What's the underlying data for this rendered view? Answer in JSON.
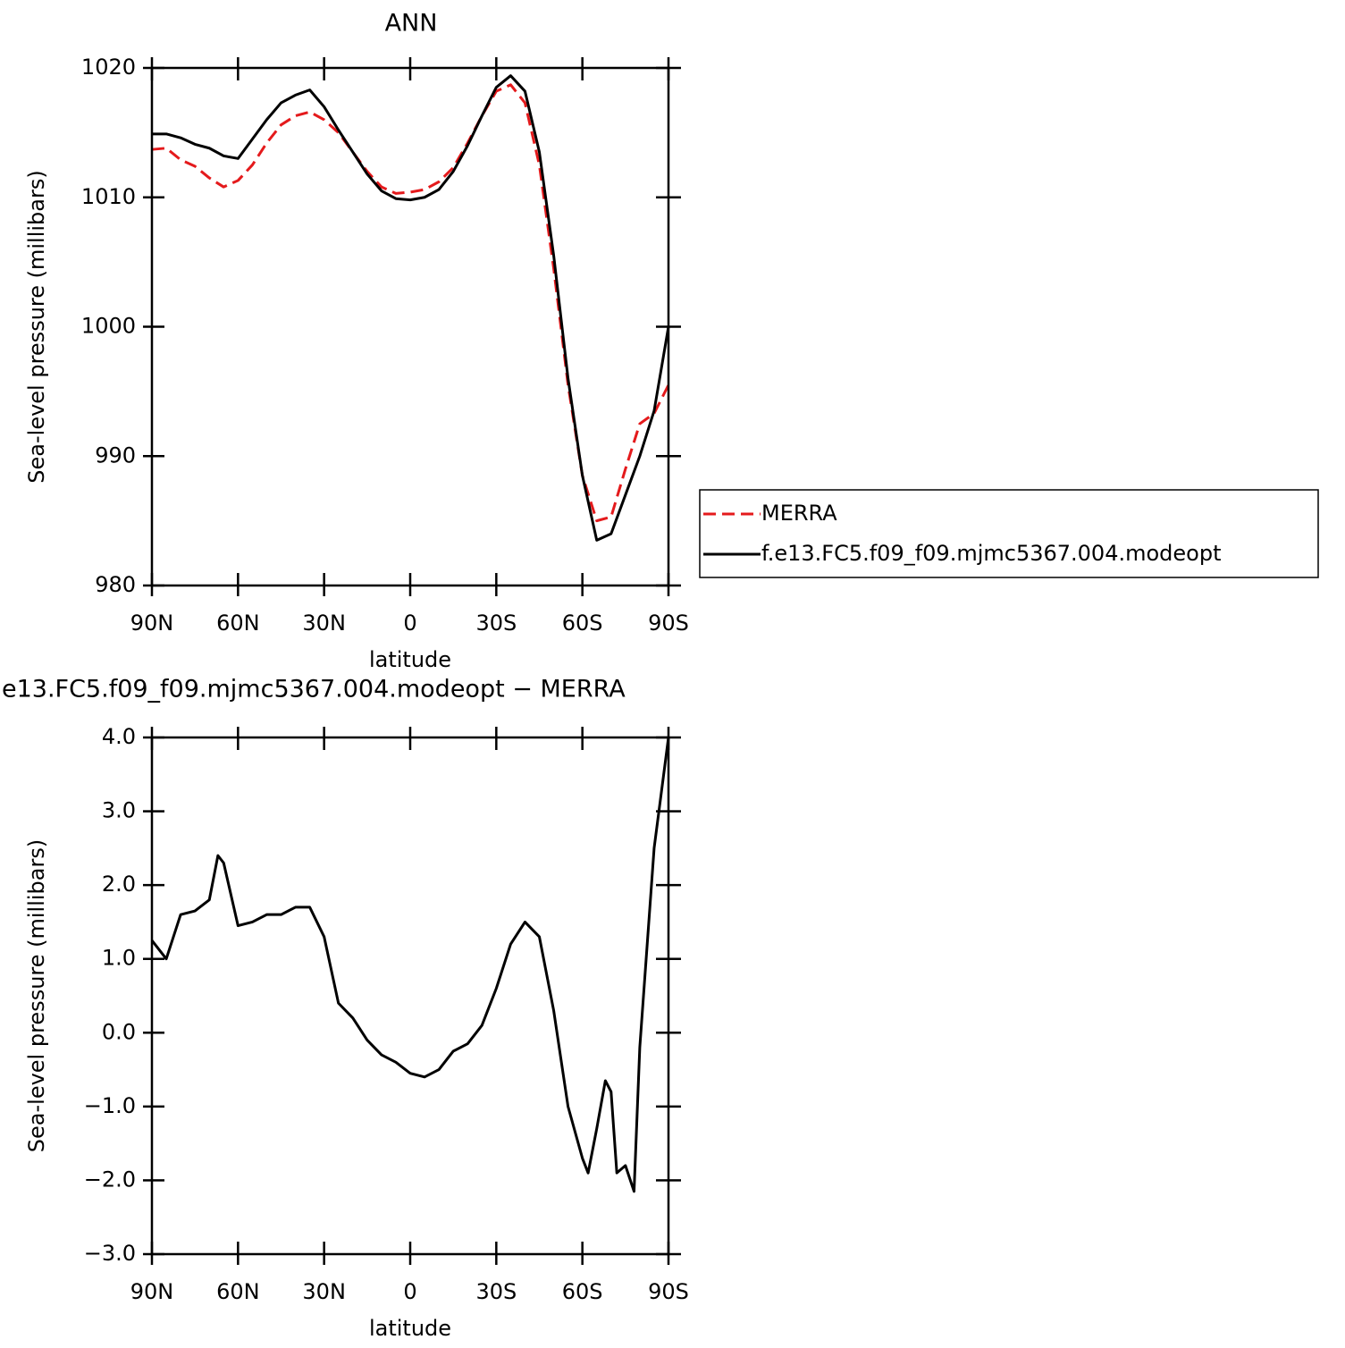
{
  "chart_data": [
    {
      "type": "line",
      "title": "ANN",
      "x_label": "latitude",
      "y_label": "Sea-level pressure (millibars)",
      "x": [
        90,
        85,
        80,
        75,
        70,
        65,
        60,
        55,
        50,
        45,
        40,
        35,
        30,
        25,
        20,
        15,
        10,
        5,
        0,
        -5,
        -10,
        -15,
        -20,
        -25,
        -30,
        -35,
        -40,
        -45,
        -50,
        -55,
        -60,
        -65,
        -70,
        -75,
        -80,
        -85,
        -90
      ],
      "series": [
        {
          "name": "MERRA",
          "color": "#e41a1c",
          "dashed": true,
          "values": [
            1013.7,
            1013.8,
            1012.9,
            1012.4,
            1011.5,
            1010.8,
            1011.3,
            1012.5,
            1014.2,
            1015.6,
            1016.3,
            1016.6,
            1016.0,
            1015.0,
            1013.5,
            1012.0,
            1010.8,
            1010.3,
            1010.4,
            1010.6,
            1011.2,
            1012.3,
            1014.2,
            1016.3,
            1018.2,
            1018.7,
            1017.3,
            1012.5,
            1004.5,
            995.5,
            988.5,
            985.0,
            985.3,
            989.0,
            992.5,
            993.3,
            995.5
          ]
        },
        {
          "name": "f.e13.FC5.f09_f09.mjmc5367.004.modeopt",
          "color": "#000000",
          "dashed": false,
          "values": [
            1014.9,
            1014.9,
            1014.6,
            1014.1,
            1013.8,
            1013.2,
            1013.0,
            1014.5,
            1016.0,
            1017.3,
            1017.9,
            1018.3,
            1017.0,
            1015.2,
            1013.5,
            1011.8,
            1010.5,
            1009.9,
            1009.8,
            1010.0,
            1010.6,
            1012.0,
            1014.0,
            1016.3,
            1018.5,
            1019.4,
            1018.2,
            1013.5,
            1005.5,
            996.0,
            988.5,
            983.5,
            984.0,
            987.0,
            990.0,
            993.5,
            1000.0
          ]
        }
      ],
      "xlim": [
        90,
        -90
      ],
      "xticks": [
        {
          "value": 90,
          "label": "90N"
        },
        {
          "value": 60,
          "label": "60N"
        },
        {
          "value": 30,
          "label": "30N"
        },
        0,
        {
          "value": -30,
          "label": "30S"
        },
        {
          "value": -60,
          "label": "60S"
        },
        {
          "value": -90,
          "label": "90S"
        }
      ],
      "ylim": [
        980,
        1020
      ],
      "yticks": [
        980,
        990,
        1000,
        1010,
        1020
      ],
      "legend": "right"
    },
    {
      "type": "line",
      "title": "e13.FC5.f09_f09.mjmc5367.004.modeopt − MERRA",
      "x_label": "latitude",
      "y_label": "Sea-level pressure (millibars)",
      "x": [
        90,
        85,
        80,
        75,
        70,
        67,
        65,
        60,
        55,
        50,
        45,
        40,
        35,
        30,
        25,
        20,
        15,
        10,
        5,
        0,
        -5,
        -10,
        -15,
        -20,
        -25,
        -30,
        -35,
        -40,
        -45,
        -50,
        -55,
        -60,
        -62,
        -65,
        -68,
        -70,
        -72,
        -75,
        -78,
        -80,
        -85,
        -90
      ],
      "values": [
        1.25,
        1.0,
        1.6,
        1.65,
        1.8,
        2.4,
        2.3,
        1.45,
        1.5,
        1.6,
        1.6,
        1.7,
        1.7,
        1.3,
        0.4,
        0.2,
        -0.1,
        -0.3,
        -0.4,
        -0.55,
        -0.6,
        -0.5,
        -0.25,
        -0.15,
        0.1,
        0.6,
        1.2,
        1.5,
        1.3,
        0.3,
        -1.0,
        -1.7,
        -1.9,
        -1.3,
        -0.65,
        -0.8,
        -1.9,
        -1.8,
        -2.15,
        -0.2,
        2.5,
        4.0
      ],
      "color": "#000000",
      "xlim": [
        90,
        -90
      ],
      "xticks": [
        {
          "value": 90,
          "label": "90N"
        },
        {
          "value": 60,
          "label": "60N"
        },
        {
          "value": 30,
          "label": "30N"
        },
        0,
        {
          "value": -30,
          "label": "30S"
        },
        {
          "value": -60,
          "label": "60S"
        },
        {
          "value": -90,
          "label": "90S"
        }
      ],
      "ylim": [
        -3,
        4
      ],
      "yticks": [
        {
          "value": -3,
          "label": "−3.0"
        },
        {
          "value": -2,
          "label": "−2.0"
        },
        {
          "value": -1,
          "label": "−1.0"
        },
        {
          "value": 0,
          "label": "0.0"
        },
        {
          "value": 1,
          "label": "1.0"
        },
        {
          "value": 2,
          "label": "2.0"
        },
        {
          "value": 3,
          "label": "3.0"
        },
        {
          "value": 4,
          "label": "4.0"
        }
      ]
    }
  ]
}
